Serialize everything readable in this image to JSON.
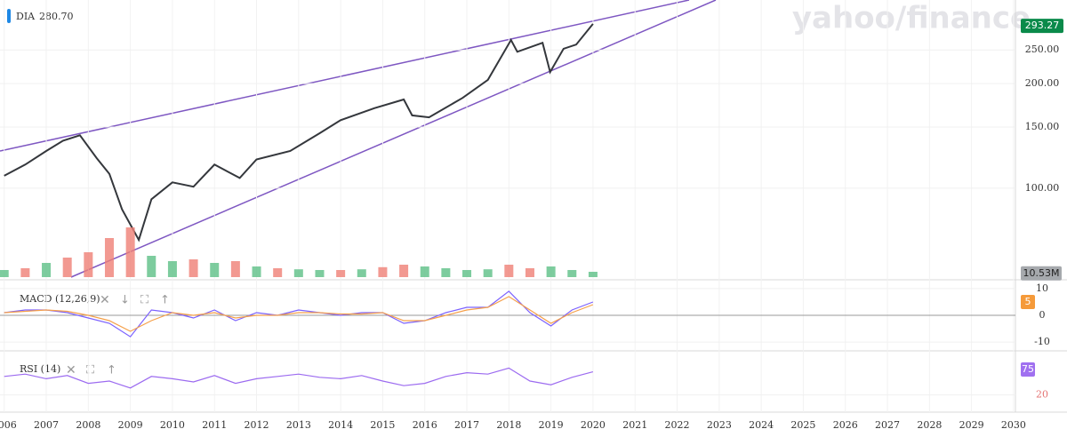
{
  "watermark": "yahoo/finance",
  "chart_data": [
    {
      "type": "line",
      "x": [
        2006.0,
        2006.5,
        2007.0,
        2007.4,
        2007.8,
        2008.2,
        2008.5,
        2008.8,
        2009.2,
        2009.5,
        2010.0,
        2010.5,
        2011.0,
        2011.6,
        2012.0,
        2012.8,
        2013.5,
        2014.0,
        2014.8,
        2015.5,
        2015.7,
        2016.1,
        2016.9,
        2017.5,
        2018.05,
        2018.2,
        2018.8,
        2018.98,
        2019.3,
        2019.6,
        2020.0
      ],
      "series": [
        {
          "name": "DIA",
          "color": "#34373c",
          "values": [
            108.6,
            117,
            128,
            137,
            142,
            122,
            110,
            87,
            71,
            93,
            104,
            101,
            117,
            107,
            121,
            128,
            144,
            157,
            170,
            180,
            162,
            160,
            182,
            205,
            267,
            247,
            262,
            216,
            252,
            259,
            297
          ]
        }
      ],
      "legend_value": {
        "value": 280.7,
        "label": "280.70"
      },
      "last_value": 293.27,
      "log_scale": true,
      "ylim": [
        55.5,
        348
      ],
      "yticks": [
        {
          "value": 100,
          "label": "100.00"
        },
        {
          "value": 150,
          "label": "150.00"
        },
        {
          "value": 200,
          "label": "200.00"
        },
        {
          "value": 250,
          "label": "250.00"
        }
      ],
      "xlim": [
        2005.9,
        2031.27
      ],
      "xticks": [
        2006,
        2007,
        2008,
        2009,
        2010,
        2011,
        2012,
        2013,
        2014,
        2015,
        2016,
        2017,
        2018,
        2019,
        2020,
        2021,
        2022,
        2023,
        2024,
        2025,
        2026,
        2027,
        2028,
        2029,
        2030
      ],
      "grid": true
    },
    {
      "type": "bar",
      "x": [
        2006.0,
        2006.5,
        2007.0,
        2007.5,
        2008.0,
        2008.5,
        2009.0,
        2009.5,
        2010.0,
        2010.5,
        2011.0,
        2011.5,
        2012.0,
        2012.5,
        2013.0,
        2013.5,
        2014.0,
        2014.5,
        2015.0,
        2015.5,
        2016.0,
        2016.5,
        2017.0,
        2017.5,
        2018.0,
        2018.5,
        2019.0,
        2019.5,
        2020.0
      ],
      "values": [
        20,
        25,
        40,
        55,
        70,
        110,
        140,
        60,
        45,
        50,
        40,
        45,
        30,
        25,
        22,
        20,
        20,
        22,
        28,
        35,
        30,
        25,
        20,
        22,
        35,
        25,
        30,
        20,
        15
      ],
      "colors": [
        "#5cbf86",
        "#ef7f76",
        "#5cbf86",
        "#ef7f76",
        "#ef7f76",
        "#ef7f76",
        "#ef7f76",
        "#5cbf86",
        "#5cbf86",
        "#ef7f76",
        "#5cbf86",
        "#ef7f76",
        "#5cbf86",
        "#ef7f76",
        "#5cbf86",
        "#5cbf86",
        "#ef7f76",
        "#5cbf86",
        "#ef7f76",
        "#ef7f76",
        "#5cbf86",
        "#5cbf86",
        "#5cbf86",
        "#5cbf86",
        "#ef7f76",
        "#ef7f76",
        "#5cbf86",
        "#5cbf86",
        "#5cbf86"
      ],
      "last_value": {
        "value": 10.53,
        "label": "10.53M"
      },
      "ylim": [
        0,
        150
      ]
    },
    {
      "type": "line",
      "title": "MACD (12,26,9)",
      "x": [
        2006.0,
        2006.5,
        2007.0,
        2007.5,
        2008.0,
        2008.5,
        2009.0,
        2009.5,
        2010.0,
        2010.5,
        2011.0,
        2011.5,
        2012.0,
        2012.5,
        2013.0,
        2013.5,
        2014.0,
        2014.5,
        2015.0,
        2015.5,
        2016.0,
        2016.5,
        2017.0,
        2017.5,
        2018.0,
        2018.5,
        2019.0,
        2019.5,
        2020.0
      ],
      "series": [
        {
          "color": "#7b61ff",
          "values": [
            1,
            2,
            2,
            1,
            -1,
            -3,
            -8,
            2,
            1,
            -1,
            2,
            -2,
            1,
            0,
            2,
            1,
            0,
            1,
            1,
            -3,
            -2,
            1,
            3,
            3,
            9,
            1,
            -4,
            2,
            5
          ]
        },
        {
          "color": "#f5a04a",
          "values": [
            1,
            1.5,
            2,
            1.5,
            0,
            -2,
            -6,
            -2,
            1,
            0,
            1,
            -1,
            0,
            0,
            1,
            1,
            0.5,
            0.5,
            1,
            -2,
            -2,
            0,
            2,
            3,
            7,
            2,
            -3,
            1,
            4
          ]
        }
      ],
      "last_value": 5,
      "ylim": [
        -12.3,
        12.3
      ],
      "yticks": [
        10,
        0,
        -10
      ]
    },
    {
      "type": "line",
      "title": "RSI (14)",
      "x": [
        2006.0,
        2006.5,
        2007.0,
        2007.5,
        2008.0,
        2008.5,
        2009.0,
        2009.5,
        2010.0,
        2010.5,
        2011.0,
        2011.5,
        2012.0,
        2012.5,
        2013.0,
        2013.5,
        2014.0,
        2014.5,
        2015.0,
        2015.5,
        2016.0,
        2016.5,
        2017.0,
        2017.5,
        2018.0,
        2018.5,
        2019.0,
        2019.5,
        2020.0
      ],
      "series": [
        {
          "color": "#9c6bf0",
          "values": [
            60,
            65,
            55,
            62,
            45,
            50,
            35,
            60,
            55,
            48,
            62,
            45,
            55,
            60,
            65,
            58,
            55,
            62,
            50,
            40,
            45,
            60,
            68,
            65,
            78,
            50,
            42,
            58,
            70
          ]
        }
      ],
      "last_value": 75,
      "ylim": [
        0,
        100
      ],
      "yticks": [
        20
      ]
    }
  ]
}
